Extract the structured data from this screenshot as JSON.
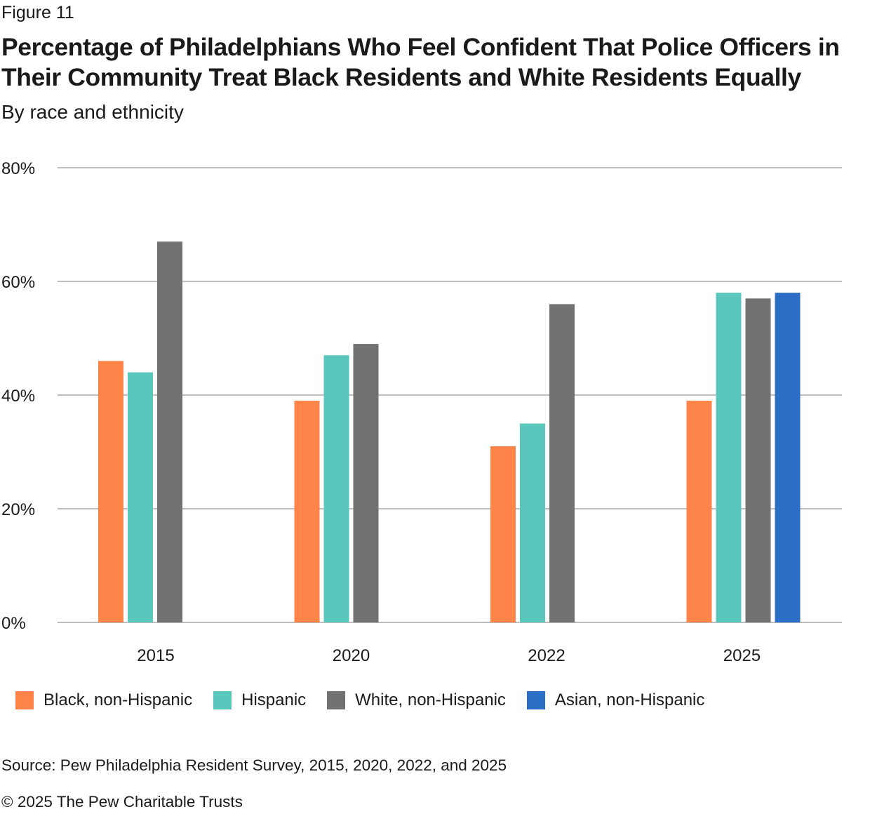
{
  "figure_label": "Figure 11",
  "title": "Percentage of Philadelphians Who Feel Confident That Police Officers in Their Community Treat Black Residents and White Residents Equally",
  "subtitle": "By race and ethnicity",
  "source": "Source: Pew Philadelphia Resident Survey, 2015, 2020, 2022, and 2025",
  "copyright": "© 2025 The Pew Charitable Trusts",
  "chart_data": {
    "type": "bar",
    "categories": [
      "2015",
      "2020",
      "2022",
      "2025"
    ],
    "series": [
      {
        "name": "Black, non-Hispanic",
        "color": "#ff844a",
        "values": [
          46,
          39,
          31,
          39
        ]
      },
      {
        "name": "Hispanic",
        "color": "#5bc6bc",
        "values": [
          44,
          47,
          35,
          58
        ]
      },
      {
        "name": "White, non-Hispanic",
        "color": "#727272",
        "values": [
          67,
          49,
          56,
          57
        ]
      },
      {
        "name": "Asian, non-Hispanic",
        "color": "#2b6ec6",
        "values": [
          null,
          null,
          null,
          58
        ]
      }
    ],
    "ylim": [
      0,
      80
    ],
    "yticks": [
      "0%",
      "20%",
      "40%",
      "60%",
      "80%"
    ],
    "grid": true,
    "legend": "bottom"
  }
}
